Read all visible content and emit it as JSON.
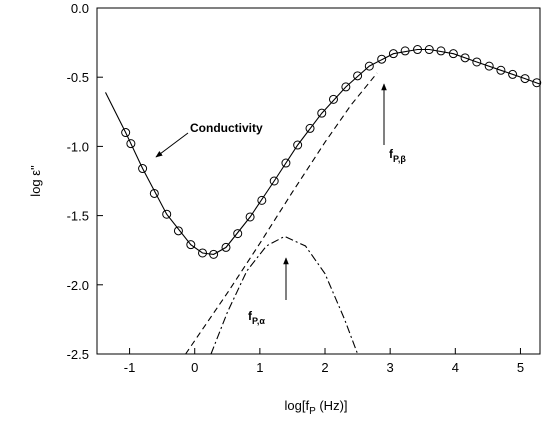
{
  "chart_data": {
    "type": "line",
    "xlabel": [
      "log[f",
      "P",
      " (Hz)]"
    ],
    "ylabel": "log ε\"",
    "xlim": [
      -1.5,
      5.3
    ],
    "ylim": [
      -2.5,
      0.0
    ],
    "xticks": [
      -1,
      0,
      1,
      2,
      3,
      4,
      5
    ],
    "yticks": [
      {
        "value": 0,
        "label": "0.0"
      },
      {
        "value": -0.5,
        "label": "-0.5"
      },
      {
        "value": -1,
        "label": "-1.0"
      },
      {
        "value": -1.5,
        "label": "-1.5"
      },
      {
        "value": -2,
        "label": "-2.0"
      },
      {
        "value": -2.5,
        "label": "-2.5"
      }
    ],
    "grid": false,
    "series": [
      {
        "style": "markers",
        "color": "#000000",
        "x": [
          -1.06,
          -0.98,
          -0.8,
          -0.62,
          -0.43,
          -0.25,
          -0.06,
          0.12,
          0.29,
          0.48,
          0.66,
          0.85,
          1.03,
          1.22,
          1.4,
          1.58,
          1.77,
          1.95,
          2.13,
          2.32,
          2.5,
          2.68,
          2.87,
          3.05,
          3.23,
          3.42,
          3.6,
          3.78,
          3.97,
          4.15,
          4.33,
          4.52,
          4.7,
          4.88,
          5.07,
          5.25
        ],
        "values": [
          -0.9,
          -0.98,
          -1.16,
          -1.34,
          -1.49,
          -1.61,
          -1.71,
          -1.77,
          -1.78,
          -1.73,
          -1.63,
          -1.51,
          -1.39,
          -1.25,
          -1.12,
          -0.99,
          -0.87,
          -0.76,
          -0.66,
          -0.57,
          -0.49,
          -0.42,
          -0.37,
          -0.33,
          -0.31,
          -0.3,
          -0.3,
          -0.31,
          -0.33,
          -0.36,
          -0.39,
          -0.42,
          -0.45,
          -0.48,
          -0.51,
          -0.54
        ]
      },
      {
        "style": "solid",
        "color": "#000000",
        "x": [
          -1.37,
          -1.06,
          -0.8,
          -0.43,
          -0.06,
          0.12,
          0.29,
          0.48,
          0.85,
          1.22,
          1.58,
          1.95,
          2.32,
          2.68,
          3.05,
          3.42,
          3.6,
          3.97,
          4.33,
          4.7,
          5.07,
          5.3
        ],
        "values": [
          -0.61,
          -0.9,
          -1.16,
          -1.49,
          -1.71,
          -1.77,
          -1.78,
          -1.73,
          -1.51,
          -1.25,
          -0.99,
          -0.76,
          -0.57,
          -0.42,
          -0.33,
          -0.3,
          -0.3,
          -0.33,
          -0.39,
          -0.45,
          -0.51,
          -0.55
        ]
      },
      {
        "style": "dashed",
        "color": "#000000",
        "x": [
          -0.14,
          0.5,
          1.0,
          1.5,
          2.0,
          2.4,
          2.8
        ],
        "values": [
          -2.5,
          -2.06,
          -1.7,
          -1.33,
          -0.97,
          -0.7,
          -0.47
        ]
      },
      {
        "style": "dashdot",
        "color": "#000000",
        "x": [
          0.25,
          0.5,
          0.8,
          1.1,
          1.38,
          1.7,
          2.0,
          2.3,
          2.5
        ],
        "values": [
          -2.5,
          -2.2,
          -1.9,
          -1.72,
          -1.65,
          -1.72,
          -1.92,
          -2.25,
          -2.5
        ]
      }
    ],
    "annotations": [
      {
        "text": "Conductivity"
      },
      {
        "text": "f",
        "subscript": "P,β"
      },
      {
        "text": "f",
        "subscript": "P,α"
      }
    ]
  }
}
